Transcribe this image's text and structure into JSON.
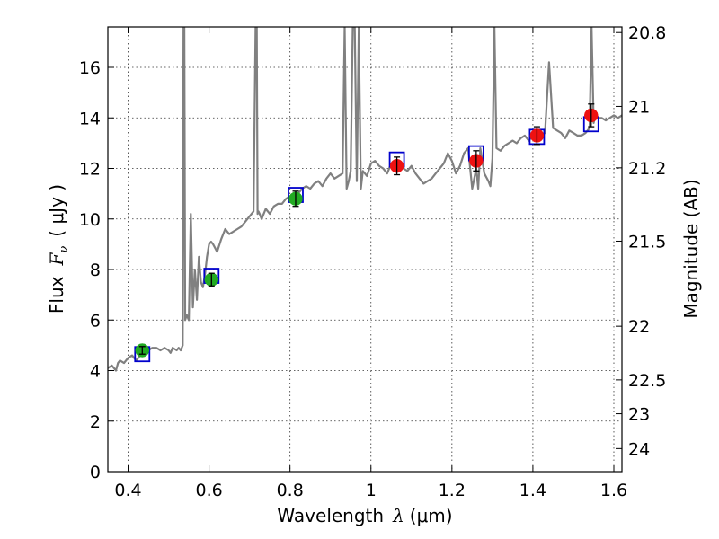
{
  "chart_data": {
    "type": "line",
    "xlabel": {
      "text": "Wavelength",
      "symbol": "λ",
      "unit": "(μm)"
    },
    "ylabel": {
      "text": "Flux",
      "symbol": "F",
      "subscript": "ν",
      "unit": "( μJy )"
    },
    "y2label": "Magnitude (AB)",
    "xlim": [
      0.35,
      1.62
    ],
    "ylim": [
      0,
      17.6
    ],
    "x_ticks": [
      0.4,
      0.6,
      0.8,
      1.0,
      1.2,
      1.4,
      1.6
    ],
    "x_tick_labels": [
      "0.4",
      "0.6",
      "0.8",
      "1",
      "1.2",
      "1.4",
      "1.6"
    ],
    "y_ticks": [
      0,
      2,
      4,
      6,
      8,
      10,
      12,
      14,
      16
    ],
    "y_tick_labels": [
      "0",
      "2",
      "4",
      "6",
      "8",
      "10",
      "12",
      "14",
      "16"
    ],
    "mag_ticks": [
      20.8,
      21,
      21.2,
      21.5,
      22,
      22.5,
      23,
      24
    ],
    "mag_tick_labels": [
      "20.8",
      "21",
      "21.2",
      "21.5",
      "22",
      "22.5",
      "23",
      "24"
    ],
    "grid": true,
    "colors": {
      "model": "#808080",
      "box": "#0000cc",
      "observed_optical": "#22aa22",
      "observed_nir": "#ee1111",
      "errorbar": "#000000"
    },
    "series": [
      {
        "kind": "model_spectrum",
        "x": [
          0.35,
          0.36,
          0.37,
          0.375,
          0.38,
          0.39,
          0.4,
          0.41,
          0.42,
          0.43,
          0.44,
          0.45,
          0.46,
          0.47,
          0.48,
          0.49,
          0.5,
          0.505,
          0.51,
          0.52,
          0.525,
          0.53,
          0.535,
          0.537,
          0.539,
          0.541,
          0.545,
          0.55,
          0.555,
          0.56,
          0.565,
          0.57,
          0.575,
          0.58,
          0.585,
          0.59,
          0.595,
          0.6,
          0.605,
          0.61,
          0.62,
          0.63,
          0.64,
          0.65,
          0.66,
          0.67,
          0.68,
          0.69,
          0.7,
          0.71,
          0.715,
          0.718,
          0.72,
          0.722,
          0.725,
          0.73,
          0.74,
          0.75,
          0.76,
          0.77,
          0.78,
          0.79,
          0.8,
          0.81,
          0.82,
          0.83,
          0.84,
          0.85,
          0.86,
          0.87,
          0.88,
          0.89,
          0.9,
          0.91,
          0.92,
          0.93,
          0.935,
          0.94,
          0.945,
          0.95,
          0.955,
          0.96,
          0.965,
          0.97,
          0.975,
          0.98,
          0.99,
          1.0,
          1.01,
          1.02,
          1.03,
          1.04,
          1.05,
          1.06,
          1.07,
          1.08,
          1.09,
          1.1,
          1.11,
          1.12,
          1.13,
          1.14,
          1.15,
          1.16,
          1.17,
          1.18,
          1.19,
          1.2,
          1.21,
          1.22,
          1.23,
          1.24,
          1.25,
          1.26,
          1.265,
          1.27,
          1.28,
          1.29,
          1.295,
          1.3,
          1.305,
          1.31,
          1.32,
          1.33,
          1.34,
          1.35,
          1.36,
          1.37,
          1.38,
          1.39,
          1.4,
          1.41,
          1.42,
          1.43,
          1.44,
          1.45,
          1.46,
          1.47,
          1.48,
          1.49,
          1.5,
          1.51,
          1.52,
          1.53,
          1.54,
          1.545,
          1.55,
          1.555,
          1.56,
          1.57,
          1.58,
          1.59,
          1.6,
          1.61,
          1.62
        ],
        "y": [
          4.1,
          4.2,
          4.0,
          4.3,
          4.4,
          4.3,
          4.5,
          4.6,
          4.4,
          4.6,
          4.7,
          4.8,
          4.9,
          4.9,
          4.8,
          4.9,
          4.8,
          4.7,
          4.9,
          4.8,
          4.9,
          4.8,
          5.0,
          17.6,
          17.6,
          6.0,
          6.2,
          6.0,
          10.2,
          6.5,
          8.0,
          6.8,
          8.5,
          7.5,
          7.3,
          7.8,
          8.5,
          9.0,
          9.1,
          9.0,
          8.7,
          9.2,
          9.6,
          9.4,
          9.5,
          9.6,
          9.7,
          9.9,
          10.1,
          10.3,
          17.6,
          17.6,
          10.2,
          10.3,
          10.2,
          10.0,
          10.4,
          10.2,
          10.5,
          10.6,
          10.6,
          10.8,
          10.9,
          11.0,
          11.0,
          11.2,
          11.3,
          11.2,
          11.4,
          11.5,
          11.3,
          11.6,
          11.8,
          11.6,
          11.7,
          11.8,
          17.6,
          11.2,
          11.5,
          11.9,
          17.6,
          17.6,
          11.5,
          17.6,
          11.2,
          11.9,
          11.7,
          12.2,
          12.3,
          12.1,
          12.0,
          11.8,
          12.2,
          12.3,
          12.2,
          12.0,
          11.9,
          12.1,
          11.8,
          11.6,
          11.4,
          11.5,
          11.6,
          11.8,
          12.0,
          12.2,
          12.6,
          12.3,
          11.8,
          12.1,
          12.6,
          12.8,
          11.2,
          12.0,
          11.2,
          12.8,
          11.8,
          11.5,
          11.3,
          12.4,
          17.6,
          12.8,
          12.7,
          12.9,
          13.0,
          13.1,
          13.0,
          13.2,
          13.3,
          13.1,
          13.3,
          13.4,
          13.3,
          13.4,
          16.2,
          13.6,
          13.5,
          13.4,
          13.2,
          13.5,
          13.4,
          13.3,
          13.3,
          13.4,
          13.6,
          17.6,
          13.8,
          14.2,
          14.0,
          14.0,
          13.9,
          14.0,
          14.1,
          14.0,
          14.1
        ]
      },
      {
        "kind": "model_photometry",
        "x": [
          0.435,
          0.606,
          0.814,
          1.064,
          1.26,
          1.41,
          1.544
        ],
        "y": [
          4.65,
          7.75,
          10.95,
          12.35,
          12.6,
          13.25,
          13.75
        ]
      },
      {
        "kind": "observed_optical",
        "x": [
          0.435,
          0.606,
          0.814
        ],
        "y": [
          4.8,
          7.6,
          10.8
        ],
        "yerr": [
          0.15,
          0.25,
          0.3
        ]
      },
      {
        "kind": "observed_nir",
        "x": [
          1.064,
          1.26,
          1.41,
          1.544
        ],
        "y": [
          12.1,
          12.3,
          13.3,
          14.1
        ],
        "yerr": [
          0.35,
          0.4,
          0.35,
          0.45
        ]
      }
    ]
  }
}
